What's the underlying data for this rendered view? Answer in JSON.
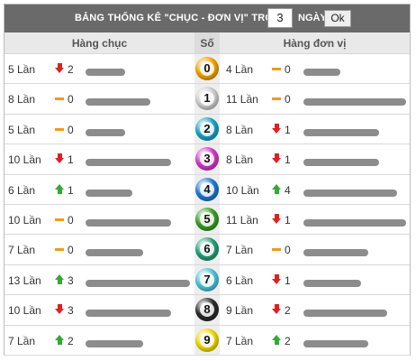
{
  "header": {
    "title": "BẢNG THỐNG KÊ \"CHỤC - ĐƠN VỊ\" TRONG",
    "days_value": "3",
    "days_suffix": "NGÀY",
    "ok_label": "Ok"
  },
  "columns": {
    "left": "Hàng chục",
    "middle": "Số",
    "right": "Hàng đơn vị"
  },
  "rows": [
    {
      "number": "0",
      "ball_color": "#f4a300",
      "tens_count": "5 Lần",
      "tens_trend": "down",
      "tens_delta": "2",
      "tens_fraction": 0.38,
      "units_count": "4 Lần",
      "units_trend": "flat",
      "units_delta": "0",
      "units_fraction": 0.35
    },
    {
      "number": "1",
      "ball_color": "#cfcfcf",
      "tens_count": "8 Lần",
      "tens_trend": "flat",
      "tens_delta": "0",
      "tens_fraction": 0.62,
      "units_count": "11 Lần",
      "units_trend": "flat",
      "units_delta": "0",
      "units_fraction": 0.98
    },
    {
      "number": "2",
      "ball_color": "#1aa3c9",
      "tens_count": "5 Lần",
      "tens_trend": "flat",
      "tens_delta": "0",
      "tens_fraction": 0.38,
      "units_count": "8 Lần",
      "units_trend": "down",
      "units_delta": "1",
      "units_fraction": 0.72
    },
    {
      "number": "3",
      "ball_color": "#d23ac8",
      "tens_count": "10 Lần",
      "tens_trend": "down",
      "tens_delta": "1",
      "tens_fraction": 0.82,
      "units_count": "8 Lần",
      "units_trend": "down",
      "units_delta": "1",
      "units_fraction": 0.72
    },
    {
      "number": "4",
      "ball_color": "#1e79d8",
      "tens_count": "6 Lần",
      "tens_trend": "up",
      "tens_delta": "1",
      "tens_fraction": 0.45,
      "units_count": "10 Lần",
      "units_trend": "up",
      "units_delta": "4",
      "units_fraction": 0.9
    },
    {
      "number": "5",
      "ball_color": "#3a9e25",
      "tens_count": "10 Lần",
      "tens_trend": "flat",
      "tens_delta": "0",
      "tens_fraction": 0.82,
      "units_count": "11 Lần",
      "units_trend": "down",
      "units_delta": "1",
      "units_fraction": 0.98
    },
    {
      "number": "6",
      "ball_color": "#25a07a",
      "tens_count": "7 Lần",
      "tens_trend": "flat",
      "tens_delta": "0",
      "tens_fraction": 0.55,
      "units_count": "7 Lần",
      "units_trend": "flat",
      "units_delta": "0",
      "units_fraction": 0.62
    },
    {
      "number": "7",
      "ball_color": "#4cc4d8",
      "tens_count": "13 Lần",
      "tens_trend": "up",
      "tens_delta": "3",
      "tens_fraction": 1.0,
      "units_count": "6 Lần",
      "units_trend": "down",
      "units_delta": "1",
      "units_fraction": 0.55
    },
    {
      "number": "8",
      "ball_color": "#2a2a2a",
      "tens_count": "10 Lần",
      "tens_trend": "down",
      "tens_delta": "3",
      "tens_fraction": 0.82,
      "units_count": "9 Lần",
      "units_trend": "down",
      "units_delta": "2",
      "units_fraction": 0.8
    },
    {
      "number": "9",
      "ball_color": "#f2d800",
      "tens_count": "7 Lần",
      "tens_trend": "up",
      "tens_delta": "2",
      "tens_fraction": 0.55,
      "units_count": "7 Lần",
      "units_trend": "up",
      "units_delta": "2",
      "units_fraction": 0.62
    }
  ]
}
